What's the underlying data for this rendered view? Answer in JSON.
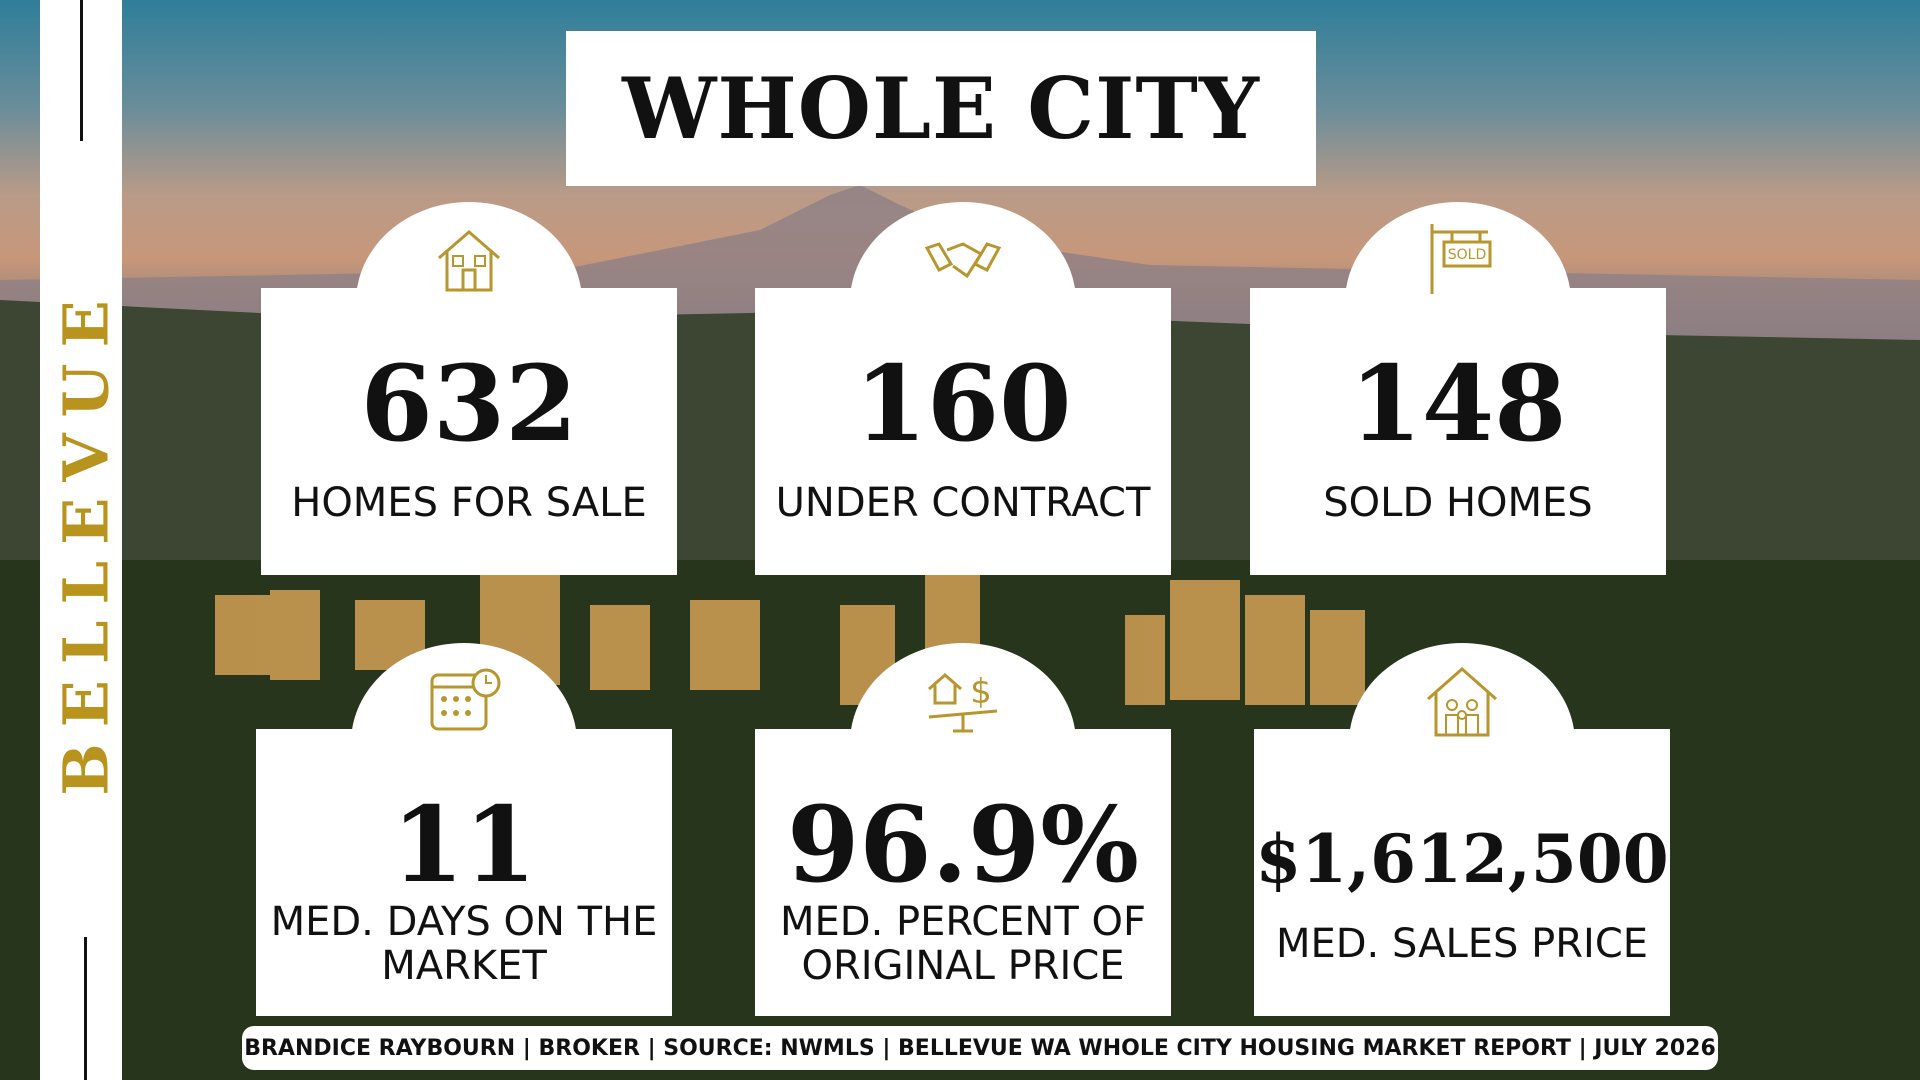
{
  "side_label": "BELLEVUE",
  "title": "WHOLE CITY",
  "stats": [
    {
      "value": "632",
      "label": "HOMES FOR SALE"
    },
    {
      "value": "160",
      "label": "UNDER CONTRACT"
    },
    {
      "value": "148",
      "label": "SOLD HOMES"
    },
    {
      "value": "11",
      "label": "MED. DAYS ON THE MARKET"
    },
    {
      "value": "96.9%",
      "label": "MED. PERCENT OF ORIGINAL PRICE"
    },
    {
      "value": "$1,612,500",
      "label": "MED. SALES PRICE"
    }
  ],
  "sold_sign": "SOLD",
  "footer": "BRANDICE RAYBOURN | BROKER | SOURCE: NWMLS | BELLEVUE WA WHOLE CITY HOUSING MARKET REPORT | JULY 2026"
}
